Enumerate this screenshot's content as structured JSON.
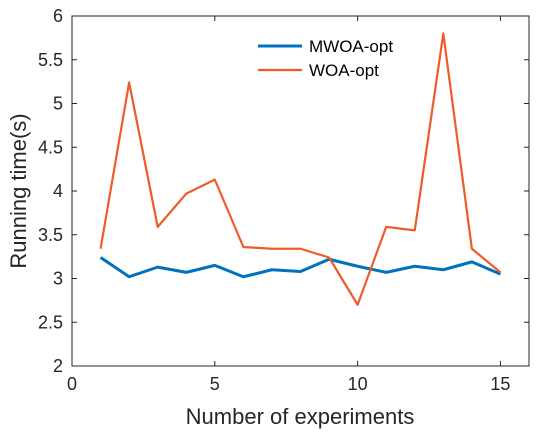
{
  "chart_data": {
    "type": "line",
    "xlabel": "Number of experiments",
    "ylabel": "Running time(s)",
    "xlim": [
      0,
      16
    ],
    "ylim": [
      2,
      6
    ],
    "xticks": [
      "0",
      "5",
      "10",
      "15"
    ],
    "yticks": [
      "2",
      "2.5",
      "3",
      "3.5",
      "4",
      "4.5",
      "5",
      "5.5",
      "6"
    ],
    "grid": false,
    "legend_position": "top-right",
    "x": [
      1,
      2,
      3,
      4,
      5,
      6,
      7,
      8,
      9,
      10,
      11,
      12,
      13,
      14,
      15
    ],
    "series": [
      {
        "name": "MWOA-opt",
        "color": "#0072BD",
        "values": [
          3.24,
          3.02,
          3.13,
          3.07,
          3.15,
          3.02,
          3.1,
          3.08,
          3.22,
          3.14,
          3.07,
          3.14,
          3.1,
          3.19,
          3.05
        ]
      },
      {
        "name": "WOA-opt",
        "color": "#EF5B2B",
        "values": [
          3.34,
          5.24,
          3.59,
          3.97,
          4.13,
          3.36,
          3.34,
          3.34,
          3.24,
          2.7,
          3.59,
          3.55,
          5.8,
          3.34,
          3.07
        ]
      }
    ]
  }
}
